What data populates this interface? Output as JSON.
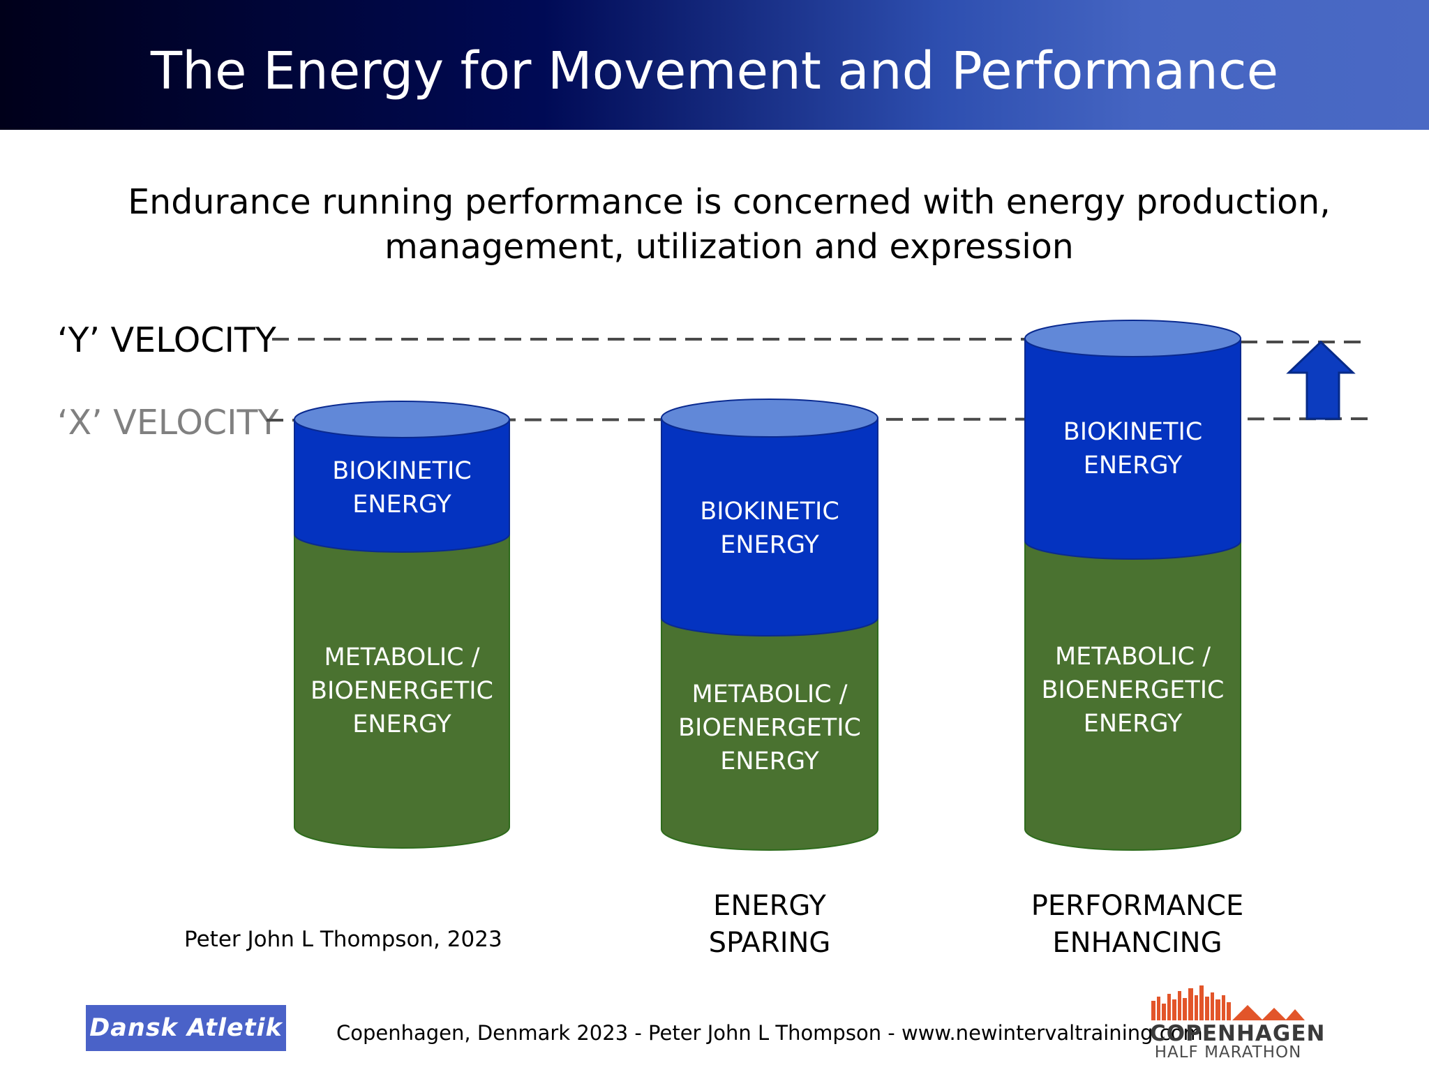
{
  "header": {
    "title": "The Energy for Movement and Performance"
  },
  "subtitle": {
    "line1": "Endurance running performance is concerned with energy production,",
    "line2": "management, utilization and expression"
  },
  "velocity_lines": {
    "y_label": "‘Y’ VELOCITY",
    "x_label": "‘X’ VELOCITY"
  },
  "cylinders": [
    {
      "biokinetic": [
        "BIOKINETIC",
        "ENERGY"
      ],
      "metabolic": [
        "METABOLIC /",
        "BIOENERGETIC",
        "ENERGY"
      ],
      "caption": []
    },
    {
      "biokinetic": [
        "BIOKINETIC",
        "ENERGY"
      ],
      "metabolic": [
        "METABOLIC /",
        "BIOENERGETIC",
        "ENERGY"
      ],
      "caption": [
        "ENERGY",
        "SPARING"
      ]
    },
    {
      "biokinetic": [
        "BIOKINETIC",
        "ENERGY"
      ],
      "metabolic": [
        "METABOLIC /",
        "BIOENERGETIC",
        "ENERGY"
      ],
      "caption": [
        "PERFORMANCE",
        "ENHANCING"
      ]
    }
  ],
  "credit": "Peter John L Thompson, 2023",
  "footer": {
    "text": "Copenhagen, Denmark 2023 - Peter John L Thompson - www.newintervaltraining.com",
    "left_logo": "Dansk Atletik",
    "right_logo": {
      "line1": "COPENHAGEN",
      "line2": "HALF MARATHON"
    }
  },
  "colors": {
    "biokinetic_blue": "#0433c0",
    "cylinder_top": "#6188d8",
    "metabolic_green": "#4a7230",
    "arrow_blue": "#0c3cbf",
    "header_dark": "#00001a",
    "header_light": "#4a69c4",
    "logo_orange": "#e2552a"
  },
  "icons": {
    "increase_arrow": "arrow-up-icon"
  }
}
